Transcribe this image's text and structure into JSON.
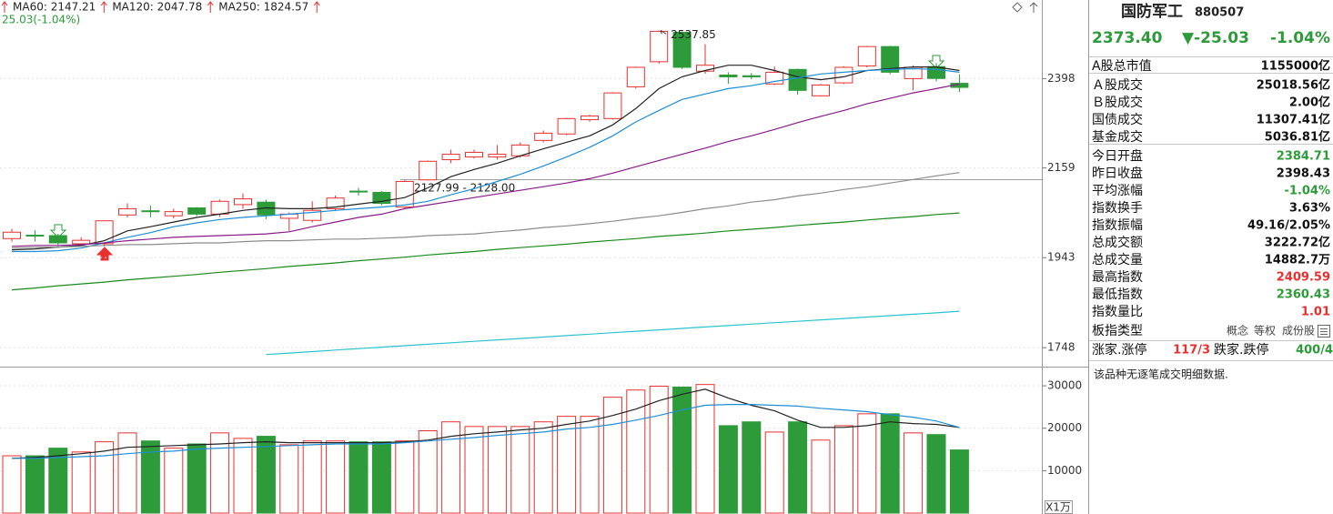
{
  "chart_data": [
    {
      "type": "candlestick",
      "subtitle": "25.03(-1.04%)",
      "up_color": "#e8302f",
      "down_color": "#2e9b3a",
      "open": [
        1987,
        1995,
        1994,
        1975,
        1975,
        2043,
        2053,
        2041,
        2060,
        2045,
        2068,
        2074,
        2035,
        2030,
        2058,
        2101,
        2098,
        2062,
        2129,
        2180,
        2187,
        2187,
        2190,
        2230,
        2247,
        2285,
        2288,
        2375,
        2446,
        2532,
        2419,
        2408,
        2406,
        2383,
        2424,
        2350,
        2386,
        2434,
        2490,
        2398,
        2432,
        2384.71
      ],
      "high": [
        2010,
        2007,
        1998,
        1990,
        2030,
        2071,
        2066,
        2058,
        2062,
        2080,
        2095,
        2080,
        2049,
        2076,
        2090,
        2109,
        2101,
        2128,
        2178,
        2206,
        2206,
        2218,
        2225,
        2256,
        2290,
        2298,
        2360,
        2432,
        2537.85,
        2535,
        2497,
        2416,
        2414,
        2432,
        2426,
        2383,
        2433,
        2492,
        2492,
        2436,
        2442,
        2409.59
      ],
      "low": [
        1980,
        1980,
        1969,
        1970,
        1969,
        2037,
        2037,
        2035,
        2040,
        2038,
        2058,
        2033,
        2005,
        2025,
        2052,
        2090,
        2066,
        2058,
        2127,
        2171,
        2183,
        2180,
        2185,
        2225,
        2244,
        2280,
        2285,
        2370,
        2440,
        2425,
        2412,
        2383,
        2396,
        2380,
        2353,
        2348,
        2383,
        2430,
        2410,
        2365,
        2390,
        2360.43
      ],
      "close": [
        2002,
        1993,
        1977,
        1983,
        2029,
        2058,
        2051,
        2051,
        2045,
        2076,
        2082,
        2043,
        2045,
        2054,
        2084,
        2100,
        2071,
        2125,
        2176,
        2194,
        2199,
        2194,
        2218,
        2249,
        2288,
        2295,
        2358,
        2430,
        2535,
        2430,
        2436,
        2403,
        2403,
        2416,
        2365,
        2380,
        2430,
        2490,
        2416,
        2430,
        2398.43,
        2373.4
      ],
      "series": [
        {
          "color": "#222222",
          "values": [
            1961,
            1963,
            1967,
            1971,
            1982,
            2005,
            2015,
            2026,
            2037,
            2045,
            2054,
            2060,
            2058,
            2058,
            2062,
            2069,
            2076,
            2085,
            2109,
            2137,
            2155,
            2171,
            2190,
            2208,
            2225,
            2242,
            2271,
            2315,
            2370,
            2403,
            2421,
            2436,
            2436,
            2421,
            2403,
            2395,
            2403,
            2421,
            2426,
            2431,
            2431,
            2421
          ]
        },
        {
          "color": "#1e8fd6",
          "values": [
            1957,
            1957,
            1959,
            1965,
            1977,
            1990,
            2001,
            2015,
            2024,
            2032,
            2037,
            2041,
            2045,
            2049,
            2054,
            2058,
            2062,
            2067,
            2076,
            2092,
            2107,
            2125,
            2143,
            2164,
            2187,
            2212,
            2242,
            2279,
            2310,
            2340,
            2355,
            2370,
            2378,
            2390,
            2400,
            2411,
            2416,
            2421,
            2424,
            2426,
            2424,
            2416
          ]
        },
        {
          "color": "#8b1a8b",
          "values": [
            1969,
            1971,
            1971,
            1973,
            1977,
            1982,
            1986,
            1990,
            1992,
            1994,
            1996,
            1998,
            2003,
            2015,
            2026,
            2037,
            2045,
            2058,
            2067,
            2076,
            2085,
            2094,
            2103,
            2112,
            2121,
            2132,
            2146,
            2162,
            2178,
            2194,
            2210,
            2227,
            2242,
            2259,
            2277,
            2294,
            2310,
            2328,
            2343,
            2358,
            2370,
            2383
          ]
        },
        {
          "name": "MA60: 2147.21",
          "color": "#8c8c8c",
          "values": [
            1965,
            1967,
            1967,
            1969,
            1971,
            1973,
            1973,
            1975,
            1977,
            1977,
            1980,
            1982,
            1982,
            1984,
            1986,
            1986,
            1988,
            1990,
            1994,
            1996,
            1998,
            2003,
            2007,
            2013,
            2017,
            2022,
            2028,
            2035,
            2041,
            2049,
            2058,
            2065,
            2074,
            2080,
            2089,
            2096,
            2105,
            2112,
            2121,
            2130,
            2139,
            2147.21
          ]
        },
        {
          "name": "MA120: 2047.78",
          "color": "#1a8a1a",
          "values": [
            1871,
            1875,
            1880,
            1884,
            1888,
            1893,
            1897,
            1901,
            1905,
            1910,
            1914,
            1918,
            1923,
            1927,
            1931,
            1936,
            1940,
            1944,
            1949,
            1953,
            1957,
            1962,
            1966,
            1970,
            1974,
            1979,
            1983,
            1987,
            1992,
            1996,
            2000,
            2005,
            2009,
            2013,
            2018,
            2022,
            2026,
            2031,
            2035,
            2039,
            2044,
            2047.78
          ]
        },
        {
          "name": "MA250: 1824.57",
          "color": "#2cc3d0",
          "values": [
            null,
            null,
            null,
            null,
            null,
            null,
            null,
            null,
            null,
            null,
            null,
            1734,
            1737,
            1740,
            1743,
            1746,
            1749,
            1752,
            1755,
            1758,
            1761,
            1764,
            1767,
            1770,
            1773,
            1776,
            1779,
            1782,
            1785,
            1788,
            1791,
            1794,
            1797,
            1800,
            1803,
            1806,
            1809,
            1812,
            1815,
            1818,
            1821,
            1824.57
          ]
        }
      ],
      "annotations": [
        {
          "text": "2127.99 - 2128.00"
        }
      ],
      "log": true,
      "grid": true,
      "ylim": [
        1715,
        2630
      ],
      "yticks": [
        2398,
        2159,
        1943,
        1748
      ]
    },
    {
      "type": "bar",
      "up_color": "#e8302f",
      "down_color": "#2e9b3a",
      "values": [
        13500,
        13500,
        15300,
        14400,
        16800,
        18900,
        17000,
        15300,
        16300,
        18900,
        17600,
        18100,
        16100,
        17000,
        17000,
        16800,
        16800,
        17000,
        19400,
        21500,
        20400,
        20400,
        20400,
        21500,
        22800,
        22800,
        27300,
        29000,
        29900,
        29700,
        30300,
        20600,
        21500,
        19100,
        21500,
        17200,
        20600,
        23400,
        23400,
        18900,
        18500,
        14882.7
      ],
      "series": [
        {
          "color": "#222222",
          "values": [
            12900,
            13100,
            13500,
            14000,
            14600,
            15500,
            15700,
            15900,
            16100,
            16300,
            16600,
            16800,
            16600,
            16600,
            16600,
            16600,
            16600,
            16800,
            17200,
            18100,
            18700,
            19100,
            19600,
            20000,
            20900,
            21700,
            23000,
            24500,
            26500,
            28000,
            29200,
            27100,
            25400,
            24100,
            21900,
            20200,
            20200,
            20600,
            21500,
            21100,
            20900,
            20200
          ]
        },
        {
          "color": "#1e8fd6",
          "values": [
            12900,
            12900,
            13100,
            13300,
            13500,
            14000,
            14400,
            14600,
            15100,
            15300,
            15500,
            15700,
            15900,
            16100,
            16300,
            16300,
            16300,
            16600,
            17000,
            17400,
            17800,
            18300,
            18700,
            19100,
            19800,
            20200,
            20900,
            21900,
            23000,
            24300,
            25400,
            25600,
            25600,
            25400,
            25200,
            24700,
            24300,
            23900,
            23200,
            22600,
            21700,
            20200
          ]
        }
      ],
      "unit_label": "X1万",
      "grid": true,
      "ylim": [
        0,
        34300
      ],
      "yticks": [
        10000,
        20000,
        30000
      ]
    }
  ],
  "panel": {
    "name": "国防军工",
    "code": "880507",
    "price": "2373.40",
    "change": "▼-25.03",
    "change_pct": "-1.04%",
    "rows": [
      [
        {
          "label": "A股总市值",
          "value": "1155000亿"
        }
      ],
      [
        {
          "label": "Ａ股成交",
          "value": "25018.56亿"
        },
        {
          "label": "Ｂ股成交",
          "value": "2.00亿"
        },
        {
          "label": "国债成交",
          "value": "11307.41亿"
        },
        {
          "label": "基金成交",
          "value": "5036.81亿"
        }
      ],
      [
        {
          "label": "今日开盘",
          "value": "2384.71",
          "color": "#2e9b3a"
        },
        {
          "label": "昨日收盘",
          "value": "2398.43"
        },
        {
          "label": "平均涨幅",
          "value": "-1.04%",
          "color": "#2e9b3a"
        },
        {
          "label": "指数换手",
          "value": "3.63%"
        },
        {
          "label": "指数振幅",
          "value": "49.16/2.05%"
        },
        {
          "label": "总成交额",
          "value": "3222.72亿"
        },
        {
          "label": "总成交量",
          "value": "14882.7万"
        },
        {
          "label": "最高指数",
          "value": "2409.59",
          "color": "#e8302f"
        },
        {
          "label": "最低指数",
          "value": "2360.43",
          "color": "#2e9b3a"
        },
        {
          "label": "指数量比",
          "value": "1.01",
          "color": "#e8302f"
        }
      ]
    ],
    "index_type": {
      "label": "板指类型",
      "tags": [
        "概念",
        "等权",
        "成份股"
      ]
    },
    "breadth": {
      "up_label": "涨家.涨停",
      "up_value": "117/3",
      "down_label": "跌家.跌停",
      "down_value": "400/4"
    },
    "note": "该品种无逐笔成交明细数据."
  }
}
